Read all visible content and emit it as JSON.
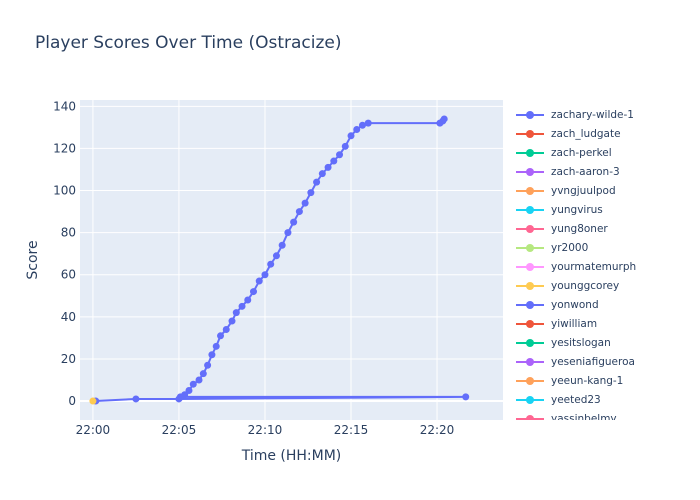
{
  "chart_data": {
    "type": "line",
    "title": "Player Scores Over Time (Ostracize)",
    "xlabel": "Time (HH:MM)",
    "ylabel": "Score",
    "xlim": [
      "21:59:15",
      "22:23:50"
    ],
    "ylim": [
      -9,
      143
    ],
    "x_ticks": [
      "22:00",
      "22:05",
      "22:10",
      "22:15",
      "22:20"
    ],
    "y_ticks": [
      0,
      20,
      40,
      60,
      80,
      100,
      120,
      140
    ],
    "grid": true,
    "legend_placement": "right",
    "series": [
      {
        "name": "zachary-wilde-1",
        "color": "#636efa",
        "points": [
          [
            "22:00:10",
            0
          ],
          [
            "22:02:30",
            1
          ],
          [
            "22:05:00",
            1
          ],
          [
            "22:21:40",
            2
          ],
          [
            "22:05:05",
            2
          ],
          [
            "22:05:20",
            3
          ],
          [
            "22:05:35",
            5
          ],
          [
            "22:05:50",
            8
          ],
          [
            "22:06:10",
            10
          ],
          [
            "22:06:25",
            13
          ],
          [
            "22:06:40",
            17
          ],
          [
            "22:06:55",
            22
          ],
          [
            "22:07:10",
            26
          ],
          [
            "22:07:25",
            31
          ],
          [
            "22:07:45",
            34
          ],
          [
            "22:08:05",
            38
          ],
          [
            "22:08:20",
            42
          ],
          [
            "22:08:40",
            45
          ],
          [
            "22:09:00",
            48
          ],
          [
            "22:09:20",
            52
          ],
          [
            "22:09:40",
            57
          ],
          [
            "22:10:00",
            60
          ],
          [
            "22:10:20",
            65
          ],
          [
            "22:10:40",
            69
          ],
          [
            "22:11:00",
            74
          ],
          [
            "22:11:20",
            80
          ],
          [
            "22:11:40",
            85
          ],
          [
            "22:12:00",
            90
          ],
          [
            "22:12:20",
            94
          ],
          [
            "22:12:40",
            99
          ],
          [
            "22:13:00",
            104
          ],
          [
            "22:13:20",
            108
          ],
          [
            "22:13:40",
            111
          ],
          [
            "22:14:00",
            114
          ],
          [
            "22:14:20",
            117
          ],
          [
            "22:14:40",
            121
          ],
          [
            "22:15:00",
            126
          ],
          [
            "22:15:20",
            129
          ],
          [
            "22:15:40",
            131
          ],
          [
            "22:16:00",
            132
          ],
          [
            "22:20:10",
            132
          ],
          [
            "22:20:20",
            133
          ],
          [
            "22:20:25",
            134
          ]
        ]
      },
      {
        "name": "zach_ludgate",
        "color": "#ef553b",
        "points": []
      },
      {
        "name": "zach-perkel",
        "color": "#00cc96",
        "points": []
      },
      {
        "name": "zach-aaron-3",
        "color": "#ab63fa",
        "points": []
      },
      {
        "name": "yvngjuulpod",
        "color": "#ffa15a",
        "points": []
      },
      {
        "name": "yungvirus",
        "color": "#19d3f3",
        "points": []
      },
      {
        "name": "yung8oner",
        "color": "#ff6692",
        "points": []
      },
      {
        "name": "yr2000",
        "color": "#b6e880",
        "points": []
      },
      {
        "name": "yourmatemurph",
        "color": "#ff97ff",
        "points": []
      },
      {
        "name": "younggcorey",
        "color": "#fecb52",
        "points": [
          [
            "22:00:00",
            0
          ]
        ]
      },
      {
        "name": "yonwond",
        "color": "#636efa",
        "points": []
      },
      {
        "name": "yiwilliam",
        "color": "#ef553b",
        "points": []
      },
      {
        "name": "yesitslogan",
        "color": "#00cc96",
        "points": []
      },
      {
        "name": "yeseniafigueroa",
        "color": "#ab63fa",
        "points": []
      },
      {
        "name": "yeeun-kang-1",
        "color": "#ffa15a",
        "points": []
      },
      {
        "name": "yeeted23",
        "color": "#19d3f3",
        "points": []
      },
      {
        "name": "yassinbelmy",
        "color": "#ff6692",
        "points": []
      }
    ]
  }
}
